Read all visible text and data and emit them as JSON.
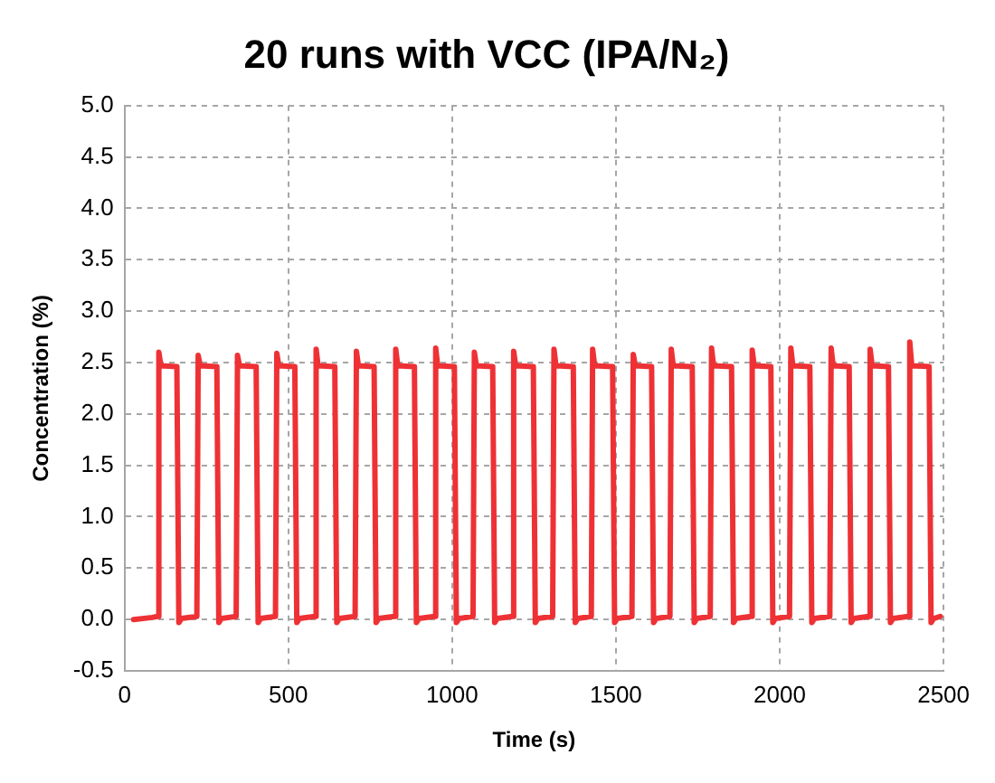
{
  "chart_data": {
    "type": "line",
    "title": "20 runs with VCC (IPA/N₂)",
    "xlabel": "Time (s)",
    "ylabel": "Concentration (%)",
    "xlim": [
      0,
      2500
    ],
    "xticks": [
      0,
      500,
      1000,
      1500,
      2000,
      2500
    ],
    "ylim": [
      -0.5,
      5.0
    ],
    "yticks": [
      {
        "value": -0.5,
        "label": "-0.5"
      },
      {
        "value": 0,
        "label": "0.0"
      },
      {
        "value": 0.5,
        "label": "0.5"
      },
      {
        "value": 1,
        "label": "1.0"
      },
      {
        "value": 1.5,
        "label": "1.5"
      },
      {
        "value": 2,
        "label": "2.0"
      },
      {
        "value": 2.5,
        "label": "2.5"
      },
      {
        "value": 3,
        "label": "3.0"
      },
      {
        "value": 3.5,
        "label": "3.5"
      },
      {
        "value": 4,
        "label": "4.0"
      },
      {
        "value": 4.5,
        "label": "4.5"
      },
      {
        "value": 5,
        "label": "5.0"
      }
    ],
    "grid": true,
    "legend": false,
    "marker": "none",
    "line_style": "solid",
    "series": [
      {
        "color": "#ee3135",
        "x": [
          28,
          85,
          101,
          105,
          111,
          160,
          166,
          174,
          221,
          225,
          231,
          282,
          288,
          296,
          341,
          345,
          351,
          402,
          408,
          416,
          461,
          465,
          471,
          520,
          526,
          534,
          581,
          585,
          591,
          642,
          648,
          656,
          704,
          708,
          714,
          762,
          768,
          776,
          824,
          828,
          834,
          885,
          891,
          899,
          946,
          950,
          956,
          1007,
          1013,
          1021,
          1064,
          1068,
          1074,
          1124,
          1130,
          1138,
          1184,
          1188,
          1194,
          1248,
          1254,
          1262,
          1307,
          1311,
          1317,
          1370,
          1376,
          1384,
          1425,
          1429,
          1435,
          1490,
          1496,
          1504,
          1549,
          1553,
          1559,
          1609,
          1615,
          1623,
          1665,
          1669,
          1675,
          1733,
          1739,
          1747,
          1788,
          1792,
          1798,
          1853,
          1859,
          1867,
          1912,
          1916,
          1922,
          1973,
          1979,
          1987,
          2030,
          2034,
          2040,
          2092,
          2098,
          2106,
          2153,
          2157,
          2163,
          2212,
          2218,
          2226,
          2272,
          2276,
          2282,
          2332,
          2338,
          2346,
          2393,
          2397,
          2403,
          2456,
          2462,
          2470,
          2490
        ],
        "values": [
          0.0,
          0.02,
          0.03,
          2.6,
          2.47,
          2.46,
          -0.03,
          0.01,
          0.03,
          2.57,
          2.47,
          2.46,
          -0.03,
          0.01,
          0.03,
          2.57,
          2.47,
          2.46,
          -0.03,
          0.01,
          0.03,
          2.59,
          2.47,
          2.46,
          -0.03,
          0.01,
          0.03,
          2.63,
          2.47,
          2.46,
          -0.03,
          0.01,
          0.03,
          2.61,
          2.47,
          2.46,
          -0.03,
          0.01,
          0.03,
          2.63,
          2.47,
          2.46,
          -0.03,
          0.01,
          0.03,
          2.64,
          2.47,
          2.46,
          -0.03,
          0.01,
          0.03,
          2.6,
          2.47,
          2.46,
          -0.03,
          0.01,
          0.03,
          2.61,
          2.47,
          2.46,
          -0.03,
          0.01,
          0.03,
          2.63,
          2.47,
          2.46,
          -0.03,
          0.01,
          0.03,
          2.63,
          2.47,
          2.46,
          -0.03,
          0.01,
          0.03,
          2.58,
          2.47,
          2.46,
          -0.03,
          0.01,
          0.03,
          2.63,
          2.47,
          2.46,
          -0.03,
          0.01,
          0.03,
          2.64,
          2.47,
          2.46,
          -0.03,
          0.01,
          0.03,
          2.62,
          2.47,
          2.46,
          -0.03,
          0.01,
          0.03,
          2.64,
          2.47,
          2.46,
          -0.03,
          0.01,
          0.03,
          2.64,
          2.47,
          2.46,
          -0.03,
          0.01,
          0.03,
          2.63,
          2.47,
          2.46,
          -0.03,
          0.01,
          0.03,
          2.7,
          2.47,
          2.46,
          -0.03,
          0.01,
          0.03
        ]
      }
    ]
  }
}
